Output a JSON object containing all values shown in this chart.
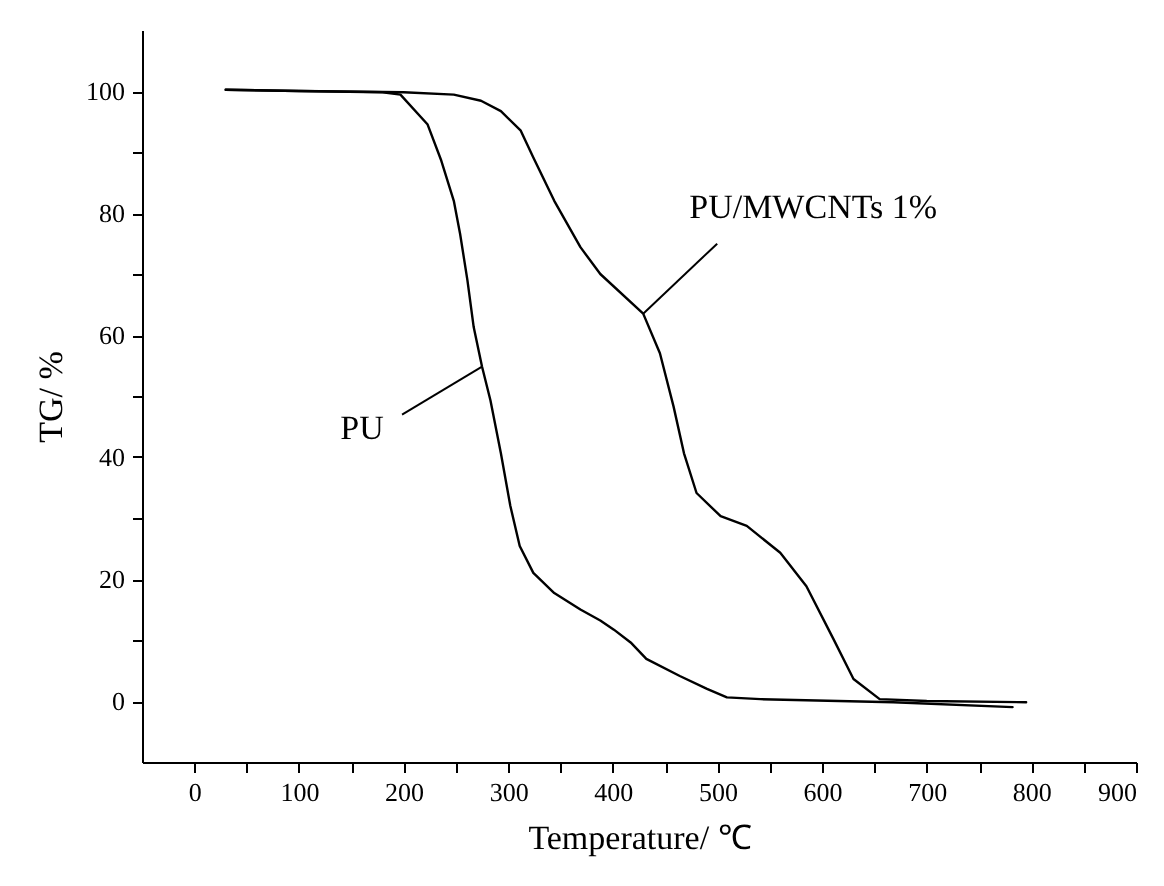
{
  "chart_data": {
    "type": "line",
    "xlabel": "Temperature/ ℃",
    "ylabel": "TG/ %",
    "xlim": [
      -50,
      900
    ],
    "ylim": [
      -10,
      110
    ],
    "xticks": [
      0,
      {
        "value": 50,
        "label": null
      },
      100,
      {
        "value": 150,
        "label": null
      },
      200,
      {
        "value": 250,
        "label": null
      },
      300,
      {
        "value": 350,
        "label": null
      },
      400,
      {
        "value": 450,
        "label": null
      },
      500,
      {
        "value": 550,
        "label": null
      },
      600,
      {
        "value": 650,
        "label": null
      },
      700,
      {
        "value": 750,
        "label": null
      },
      800,
      {
        "value": 850,
        "label": null
      },
      900
    ],
    "yticks": [
      0,
      {
        "value": 10,
        "label": null
      },
      20,
      {
        "value": 30,
        "label": null
      },
      40,
      {
        "value": 50,
        "label": null
      },
      60,
      {
        "value": 70,
        "label": null
      },
      80,
      {
        "value": 90,
        "label": null
      },
      100
    ],
    "line_style": "solid",
    "series": [
      {
        "color": "#000000",
        "x": [
          30,
          100,
          180,
          197,
          223,
          236,
          248,
          254,
          261,
          267,
          275,
          283,
          293,
          302,
          311,
          324,
          344,
          369,
          388,
          401,
          417,
          432,
          464,
          490,
          509,
          541,
          668,
          782
        ],
        "values": [
          100.2,
          100,
          99.8,
          99.4,
          94.5,
          88.6,
          82,
          76.6,
          69,
          61.3,
          54.8,
          49.3,
          40.6,
          32,
          25.4,
          21,
          17.7,
          15,
          13.2,
          11.7,
          9.6,
          6.9,
          4.1,
          2,
          0.6,
          0.3,
          -0.2,
          -1
        ]
      },
      {
        "color": "#000000",
        "x": [
          30,
          100,
          200,
          248,
          274,
          293,
          312,
          324,
          344,
          369,
          388,
          429,
          445,
          458,
          468,
          480,
          503,
          528,
          560,
          585,
          611,
          630,
          655,
          700,
          795
        ],
        "values": [
          100.2,
          100,
          99.8,
          99.4,
          98.4,
          96.7,
          93.5,
          89.1,
          82,
          74.4,
          70,
          63.5,
          57,
          48.3,
          40.6,
          34.1,
          30.3,
          28.7,
          24.3,
          18.8,
          10.1,
          3.6,
          0.3,
          0,
          -0.2
        ]
      }
    ],
    "annotations": [
      {
        "text": "PU",
        "x": 275,
        "y": 54.8
      },
      {
        "text": "PU/MWCNTs 1%",
        "x": 429,
        "y": 63.5
      }
    ]
  }
}
